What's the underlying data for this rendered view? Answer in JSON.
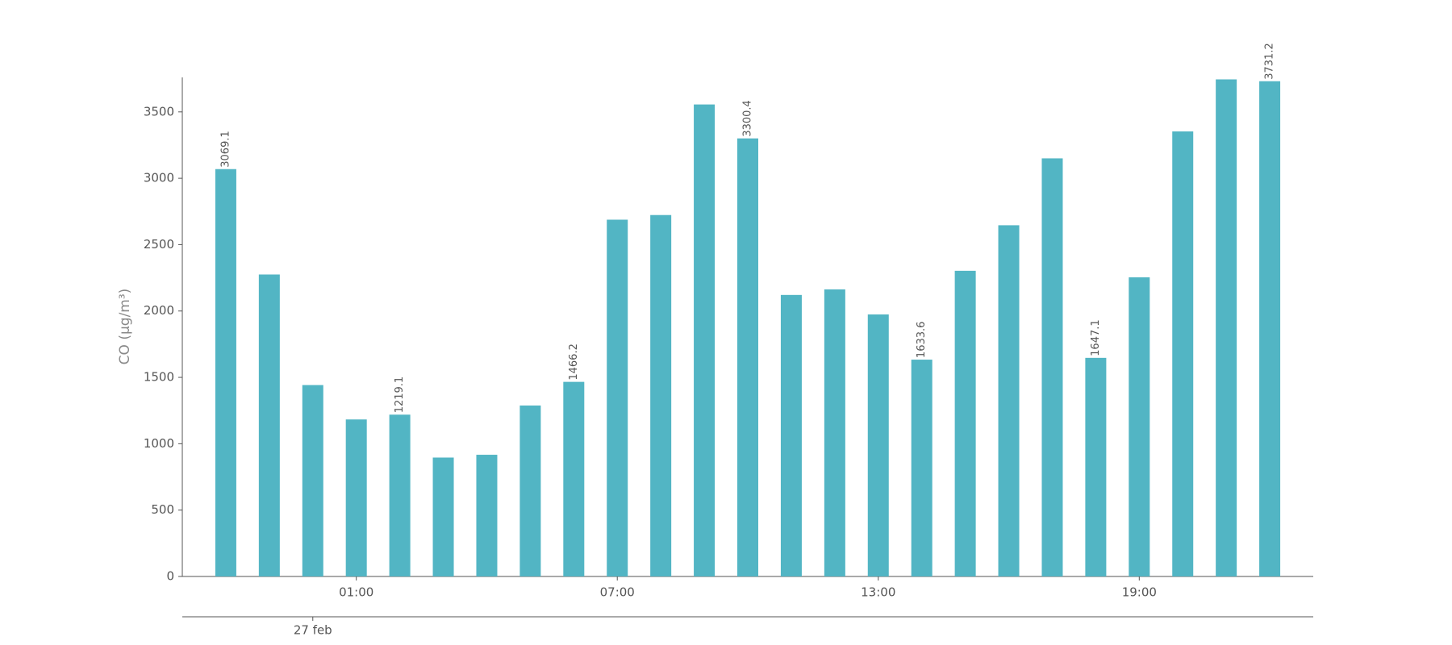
{
  "chart_data": {
    "type": "bar",
    "y_label": "CO (μg/m³)",
    "categories": [
      null,
      null,
      null,
      "01:00",
      null,
      null,
      null,
      null,
      null,
      "07:00",
      null,
      null,
      null,
      null,
      null,
      "13:00",
      null,
      null,
      null,
      null,
      null,
      "19:00",
      null,
      null,
      null
    ],
    "secondary_categories": [
      null,
      null,
      "27 feb",
      null,
      null,
      null,
      null,
      null,
      null,
      null,
      null,
      null,
      null,
      null,
      null,
      null,
      null,
      null,
      null,
      null,
      null,
      null,
      null,
      null,
      null
    ],
    "values": [
      3069.1,
      2275,
      1442,
      1183,
      1219.1,
      896,
      917,
      1288,
      1466.2,
      2688,
      2723,
      3556,
      3300.4,
      2121,
      2163,
      1974,
      1633.6,
      2303,
      2646,
      3150,
      1647.1,
      2254,
      3353,
      3745,
      3731.2
    ],
    "value_label_every": 4,
    "color": "#52b5c4",
    "ylim": [
      0,
      3760
    ],
    "yticks": [
      0,
      500,
      1000,
      1500,
      2000,
      2500,
      3000,
      3500
    ]
  }
}
